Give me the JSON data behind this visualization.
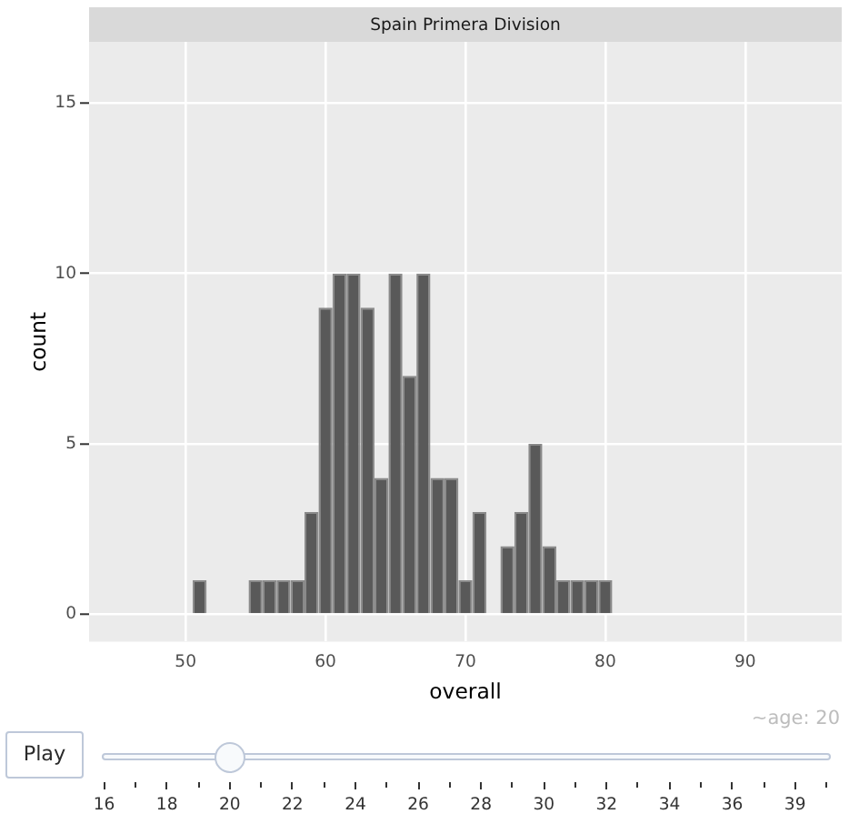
{
  "chart_data": {
    "type": "histogram",
    "title": "Spain Primera Division",
    "xlabel": "overall",
    "ylabel": "count",
    "bins": [
      50.5,
      51.5,
      52.5,
      53.5,
      54.5,
      55.5,
      56.5,
      57.5,
      58.5,
      59.5,
      60.5,
      61.5,
      62.5,
      63.5,
      64.5,
      65.5,
      66.5,
      67.5,
      68.5,
      69.5,
      70.5,
      71.5,
      72.5,
      73.5,
      74.5,
      75.5,
      76.5,
      77.5,
      78.5,
      79.5,
      80.5
    ],
    "values": [
      1,
      0,
      0,
      0,
      1,
      1,
      1,
      1,
      3,
      9,
      10,
      10,
      9,
      4,
      10,
      7,
      10,
      4,
      4,
      1,
      3,
      0,
      2,
      3,
      5,
      2,
      1,
      1,
      1,
      1
    ],
    "color": "#595959",
    "xlim": [
      43.1,
      96.9
    ],
    "ylim": [
      -0.8,
      16.8
    ],
    "xticks": [
      50,
      60,
      70,
      80,
      90
    ],
    "yticks": [
      0,
      5,
      10,
      15
    ],
    "grid": true,
    "annotations": [
      "~age: 20",
      "Play",
      "16",
      "18",
      "20",
      "22",
      "24",
      "26",
      "28",
      "30",
      "32",
      "34",
      "36",
      "39"
    ]
  }
}
